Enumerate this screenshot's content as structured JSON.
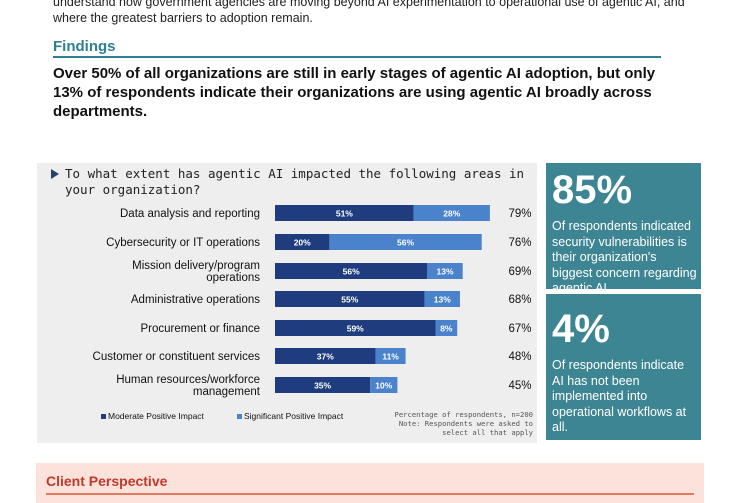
{
  "intro_text": "understand how government agencies are moving beyond AI experimentation to operational use of agentic AI, and where the greatest barriers to adoption remain.",
  "findings": {
    "title": "Findings",
    "statement": "Over 50% of all organizations are still in early stages of agentic AI adoption, but only 13% of respondents indicate their organizations are using agentic AI broadly across departments."
  },
  "chart_data": {
    "type": "bar",
    "orientation": "horizontal",
    "stacked": true,
    "title": "To what extent has agentic AI impacted the following areas in your organization?",
    "categories": [
      [
        "Data analysis and reporting"
      ],
      [
        "Cybersecurity or IT operations"
      ],
      [
        "Mission delivery/program",
        "operations"
      ],
      [
        "Administrative operations"
      ],
      [
        "Procurement or finance"
      ],
      [
        "Customer or constituent services"
      ],
      [
        "Human resources/workforce",
        "management"
      ]
    ],
    "series": [
      {
        "name": "Moderate Positive Impact",
        "values": [
          51,
          20,
          56,
          55,
          59,
          37,
          35
        ],
        "color": "#1f3d7e"
      },
      {
        "name": "Significant Positive Impact",
        "values": [
          28,
          56,
          13,
          13,
          8,
          11,
          10
        ],
        "color": "#4a83cc"
      }
    ],
    "value_labels": [
      [
        "51%",
        "20%",
        "56%",
        "55%",
        "59%",
        "37%",
        "35%"
      ],
      [
        "28%",
        "56%",
        "13%",
        "13%",
        "8%",
        "11%",
        "10%"
      ]
    ],
    "totals": [
      "79%",
      "76%",
      "69%",
      "68%",
      "67%",
      "48%",
      "45%"
    ],
    "legend_position": "bottom-left",
    "grid": false,
    "notes": [
      "Percentage of respondents, n=200",
      "Note: Respondents were asked to",
      "select all that apply"
    ]
  },
  "stats": [
    {
      "value": "85%",
      "text": "Of respondents indicated security vulnerabilities is their organization's biggest concern regarding agentic AI."
    },
    {
      "value": "4%",
      "text": "Of respondents indicate AI has not been implemented into operational workflows at all."
    }
  ],
  "client_perspective": {
    "title": "Client Perspective"
  },
  "colors": {
    "accent": "#2e7f92",
    "stat_box": "#3d8593",
    "client_bg": "#fbe3dc",
    "client_title": "#c0392b"
  }
}
